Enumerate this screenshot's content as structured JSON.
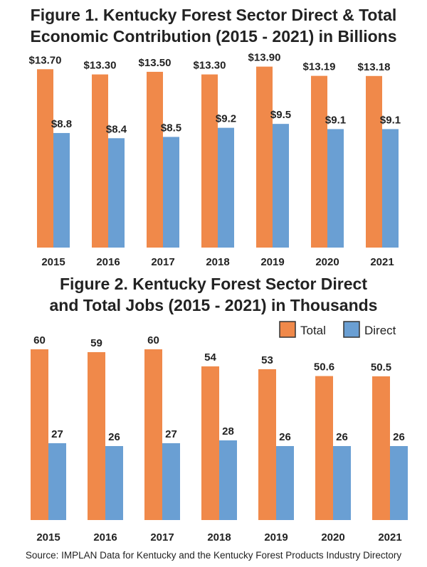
{
  "colors": {
    "total": "#F0894A",
    "direct": "#6A9FD3",
    "text": "#222222"
  },
  "chart_data": [
    {
      "type": "bar",
      "title_lines": [
        "Figure 1. Kentucky Forest Sector Direct & Total",
        "Economic Contribution (2015 - 2021) in Billions"
      ],
      "categories": [
        "2015",
        "2016",
        "2017",
        "2018",
        "2019",
        "2020",
        "2021"
      ],
      "series": [
        {
          "values": [
            13.7,
            13.3,
            13.5,
            13.3,
            13.9,
            13.19,
            13.18
          ],
          "labels": [
            "$13.70",
            "$13.30",
            "$13.50",
            "$13.30",
            "$13.90",
            "$13.19",
            "$13.18"
          ]
        },
        {
          "values": [
            8.8,
            8.4,
            8.5,
            9.2,
            9.5,
            9.1,
            9.1
          ],
          "labels": [
            "$8.8",
            "$8.4",
            "$8.5",
            "$9.2",
            "$9.5",
            "$9.1",
            "$9.1"
          ]
        }
      ],
      "grid": false
    },
    {
      "type": "bar",
      "title_lines": [
        "Figure 2. Kentucky Forest Sector Direct",
        "and Total Jobs (2015 - 2021) in Thousands"
      ],
      "categories": [
        "2015",
        "2016",
        "2017",
        "2018",
        "2019",
        "2020",
        "2021"
      ],
      "series": [
        {
          "name": "Total",
          "values": [
            60,
            59,
            60,
            54,
            53,
            50.6,
            50.5
          ],
          "labels": [
            "60",
            "59",
            "60",
            "54",
            "53",
            "50.6",
            "50.5"
          ]
        },
        {
          "name": "Direct",
          "values": [
            27,
            26,
            27,
            28,
            26,
            26,
            26
          ],
          "labels": [
            "27",
            "26",
            "27",
            "28",
            "26",
            "26",
            "26"
          ]
        }
      ],
      "legend_position": "top-right",
      "grid": false
    }
  ],
  "source": "Source: IMPLAN Data for Kentucky and the Kentucky Forest Products Industry Directory"
}
